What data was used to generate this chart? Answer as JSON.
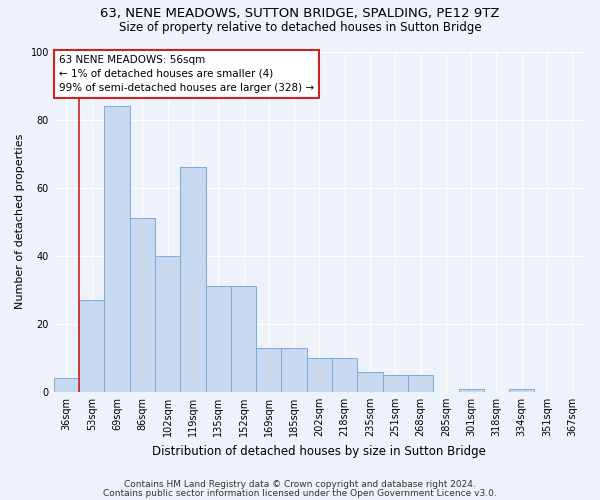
{
  "title1": "63, NENE MEADOWS, SUTTON BRIDGE, SPALDING, PE12 9TZ",
  "title2": "Size of property relative to detached houses in Sutton Bridge",
  "xlabel": "Distribution of detached houses by size in Sutton Bridge",
  "ylabel": "Number of detached properties",
  "categories": [
    "36sqm",
    "53sqm",
    "69sqm",
    "86sqm",
    "102sqm",
    "119sqm",
    "135sqm",
    "152sqm",
    "169sqm",
    "185sqm",
    "202sqm",
    "218sqm",
    "235sqm",
    "251sqm",
    "268sqm",
    "285sqm",
    "301sqm",
    "318sqm",
    "334sqm",
    "351sqm",
    "367sqm"
  ],
  "values": [
    4,
    27,
    84,
    51,
    40,
    66,
    31,
    31,
    13,
    13,
    10,
    10,
    6,
    5,
    5,
    0,
    1,
    0,
    1,
    0,
    0
  ],
  "bar_color": "#c8d8ef",
  "bar_edge_color": "#7aaadd",
  "ylim": [
    0,
    100
  ],
  "yticks": [
    0,
    20,
    40,
    60,
    80,
    100
  ],
  "vline_x": 0.5,
  "vline_color": "#cc2222",
  "annotation_text": "63 NENE MEADOWS: 56sqm\n← 1% of detached houses are smaller (4)\n99% of semi-detached houses are larger (328) →",
  "annotation_box_color": "#ffffff",
  "annotation_box_edge_color": "#cc2222",
  "bg_color": "#eef2fa",
  "footer1": "Contains HM Land Registry data © Crown copyright and database right 2024.",
  "footer2": "Contains public sector information licensed under the Open Government Licence v3.0.",
  "title1_fontsize": 9.5,
  "title2_fontsize": 8.5,
  "xlabel_fontsize": 8.5,
  "ylabel_fontsize": 8,
  "tick_fontsize": 7,
  "annotation_fontsize": 7.5,
  "footer_fontsize": 6.5
}
